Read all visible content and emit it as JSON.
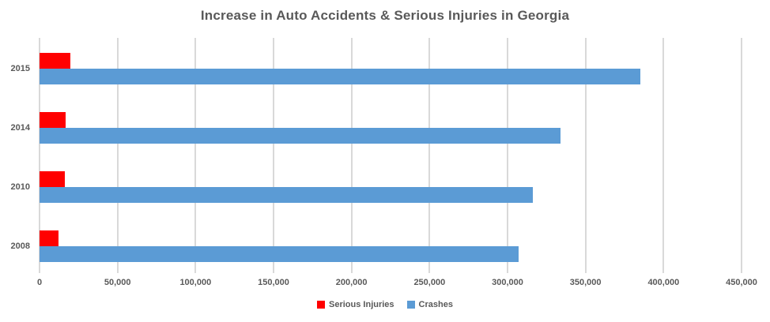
{
  "chart_data": {
    "type": "bar",
    "orientation": "horizontal",
    "title": "Increase in Auto Accidents & Serious Injuries in Georgia",
    "categories": [
      "2015",
      "2014",
      "2010",
      "2008"
    ],
    "series": [
      {
        "name": "Serious Injuries",
        "color": "#ff0000",
        "values": [
          20000,
          16500,
          16000,
          12000
        ]
      },
      {
        "name": "Crashes",
        "color": "#5b9bd5",
        "values": [
          385000,
          334000,
          316000,
          307000
        ]
      }
    ],
    "xlabel": "",
    "ylabel": "",
    "x_axis": {
      "min": 0,
      "max": 450000,
      "tick_interval": 50000,
      "tick_labels": [
        "0",
        "50,000",
        "100,000",
        "150,000",
        "200,000",
        "250,000",
        "300,000",
        "350,000",
        "400,000",
        "450,000"
      ]
    },
    "grid": true,
    "legend_position": "bottom",
    "colors": {
      "gridline": "#d9d9d9",
      "text": "#595959",
      "background": "#ffffff"
    }
  }
}
